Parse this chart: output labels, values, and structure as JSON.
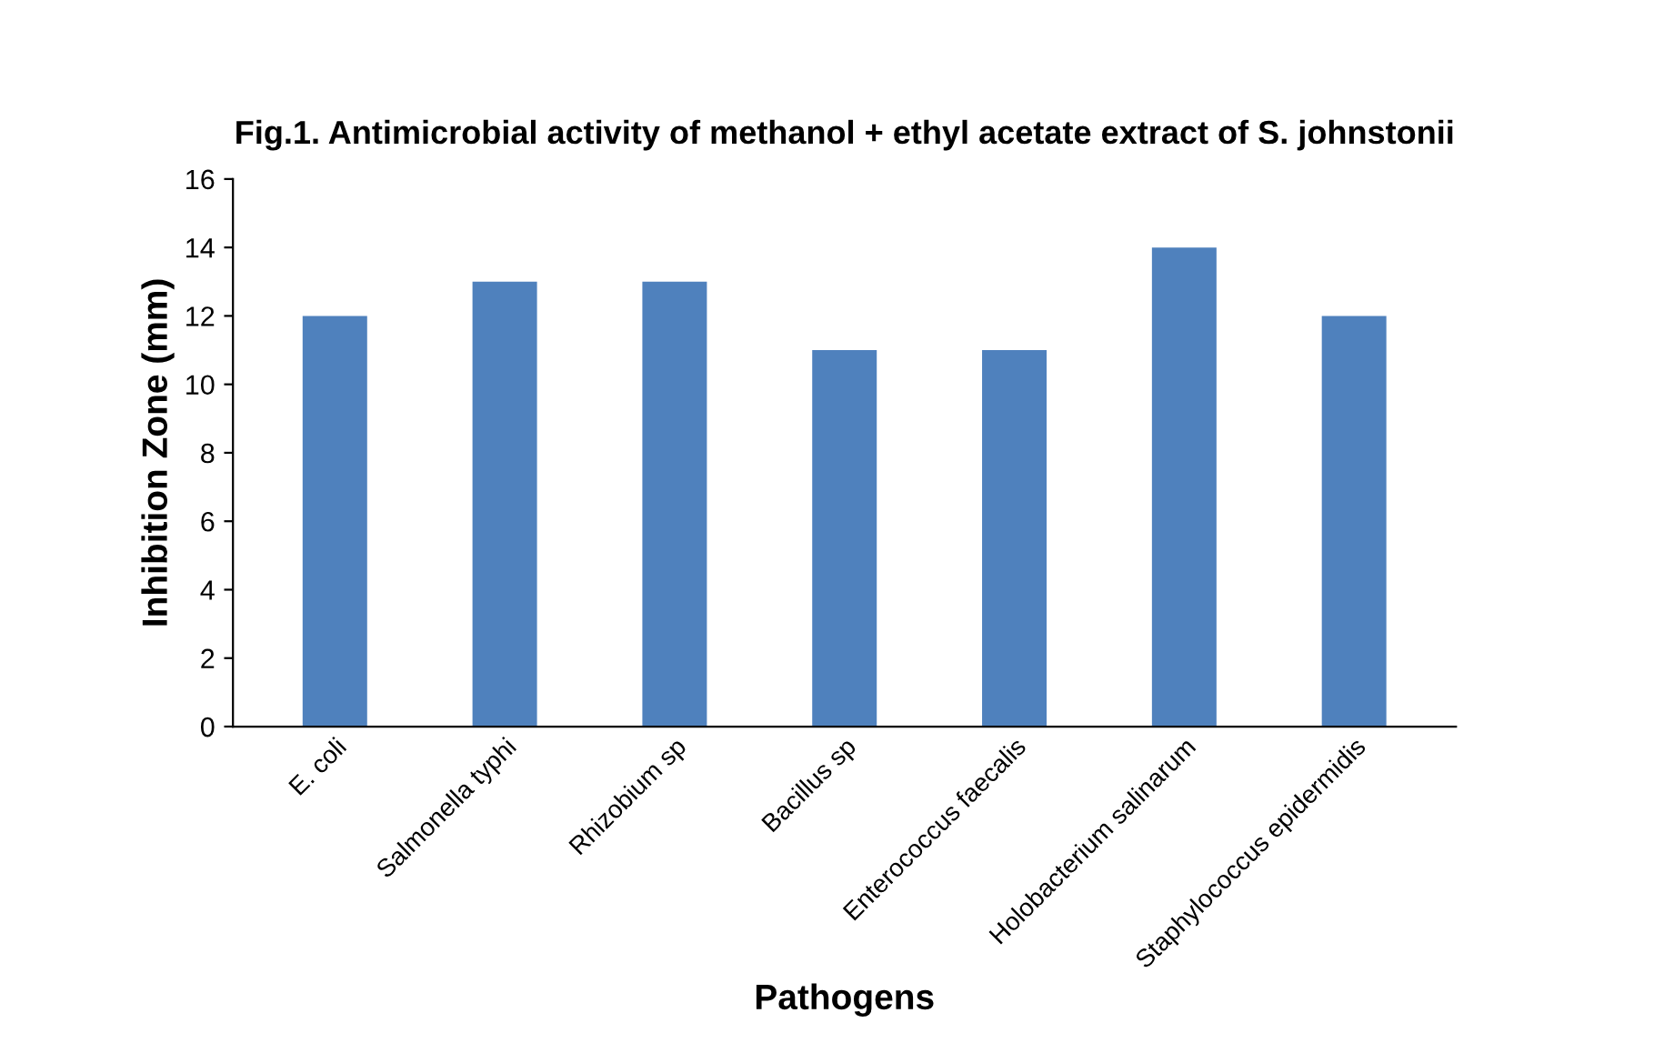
{
  "chart_data": {
    "type": "bar",
    "title": "Fig.1. Antimicrobial activity of methanol + ethyl acetate extract of S. johnstonii",
    "xlabel": "Pathogens",
    "ylabel": "Inhibition Zone (mm)",
    "categories": [
      "E. coli",
      "Salmonella typhi",
      "Rhizobium sp",
      "Bacillus sp",
      "Enterococcus faecalis",
      "Holobacterium salinarum",
      "Staphylococcus epidermidis"
    ],
    "values": [
      12,
      13,
      13,
      11,
      11,
      14,
      12
    ],
    "color": "#4f81bd",
    "ylim": [
      0,
      16
    ],
    "yticks": [
      0,
      2,
      4,
      6,
      8,
      10,
      12,
      14,
      16
    ],
    "grid": false,
    "legend": false
  }
}
